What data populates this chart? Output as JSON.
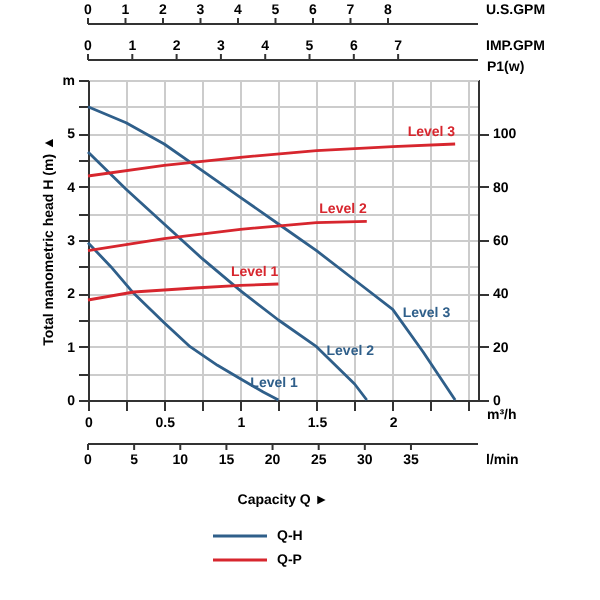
{
  "chart_data": {
    "type": "line",
    "xlabel": "m³/h",
    "ylabel": "Total manometric head H (m) ▲",
    "y2label": "P1(w)",
    "x2label": "U.S.GPM",
    "annotations": [
      "Capacity Q ►",
      "Q-H",
      "Q-P",
      "0",
      "1",
      "2",
      "3",
      "4",
      "5",
      "6",
      "7",
      "IMP.GPM",
      "0",
      "5",
      "10",
      "15",
      "20",
      "25",
      "30",
      "35",
      "l/min"
    ],
    "xlim": [
      0,
      2.56
    ],
    "xticks": [
      0,
      {
        "value": 0.25,
        "label": null
      },
      0.5,
      {
        "value": 0.75,
        "label": null
      },
      1,
      {
        "value": 1.25,
        "label": null
      },
      1.5,
      {
        "value": 1.75,
        "label": null
      },
      2,
      {
        "value": 2.25,
        "label": null
      },
      {
        "value": 2.5,
        "label": null
      }
    ],
    "x2lim": [
      0,
      10.4
    ],
    "x2ticks": [
      0,
      1,
      2,
      3,
      4,
      5,
      6,
      7,
      8
    ],
    "ylim": [
      0,
      6
    ],
    "yticks": [
      0,
      {
        "value": 0.5,
        "label": null
      },
      1,
      {
        "value": 1.5,
        "label": null
      },
      2,
      {
        "value": 2.5,
        "label": null
      },
      3,
      {
        "value": 3.5,
        "label": null
      },
      4,
      {
        "value": 4.5,
        "label": null
      },
      5,
      {
        "value": 5.5,
        "label": null
      },
      {
        "value": 6,
        "label": "m"
      }
    ],
    "y2lim": [
      0,
      120
    ],
    "y2ticks": [
      0,
      20,
      40,
      60,
      80,
      100
    ],
    "grid": true,
    "series": [
      {
        "name": "Level 1",
        "color": "#2f5f8a",
        "x": [
          0,
          0.15,
          0.3,
          0.5,
          0.67,
          0.85,
          1.0,
          1.15,
          1.25
        ],
        "values": [
          2.95,
          2.5,
          2.0,
          1.45,
          1.0,
          0.65,
          0.4,
          0.15,
          0
        ]
      },
      {
        "name": "Level 2",
        "color": "#2f5f8a",
        "x": [
          0,
          0.25,
          0.5,
          0.75,
          1.0,
          1.25,
          1.5,
          1.75,
          1.83
        ],
        "values": [
          4.65,
          3.95,
          3.3,
          2.65,
          2.05,
          1.5,
          1.0,
          0.3,
          0
        ]
      },
      {
        "name": "Level 3",
        "color": "#2f5f8a",
        "x": [
          0,
          0.25,
          0.5,
          0.75,
          1.0,
          1.25,
          1.5,
          1.75,
          2.0,
          2.2,
          2.41
        ],
        "values": [
          5.5,
          5.2,
          4.8,
          4.3,
          3.8,
          3.3,
          2.8,
          2.25,
          1.7,
          0.9,
          0
        ]
      },
      {
        "name": "Level 1",
        "color": "#d7262e",
        "axis": "y2",
        "x": [
          0,
          0.3,
          0.7,
          1.0,
          1.25
        ],
        "values": [
          37.5,
          40.5,
          42,
          43,
          43.5
        ]
      },
      {
        "name": "Level 2",
        "color": "#d7262e",
        "axis": "y2",
        "x": [
          0,
          0.5,
          1.0,
          1.5,
          1.83
        ],
        "values": [
          56,
          60.5,
          64,
          66.5,
          67
        ]
      },
      {
        "name": "Level 3",
        "color": "#d7262e",
        "axis": "y2",
        "x": [
          0,
          0.5,
          1.0,
          1.5,
          2.0,
          2.41
        ],
        "values": [
          84,
          88,
          91,
          93.5,
          95,
          96
        ]
      }
    ]
  }
}
